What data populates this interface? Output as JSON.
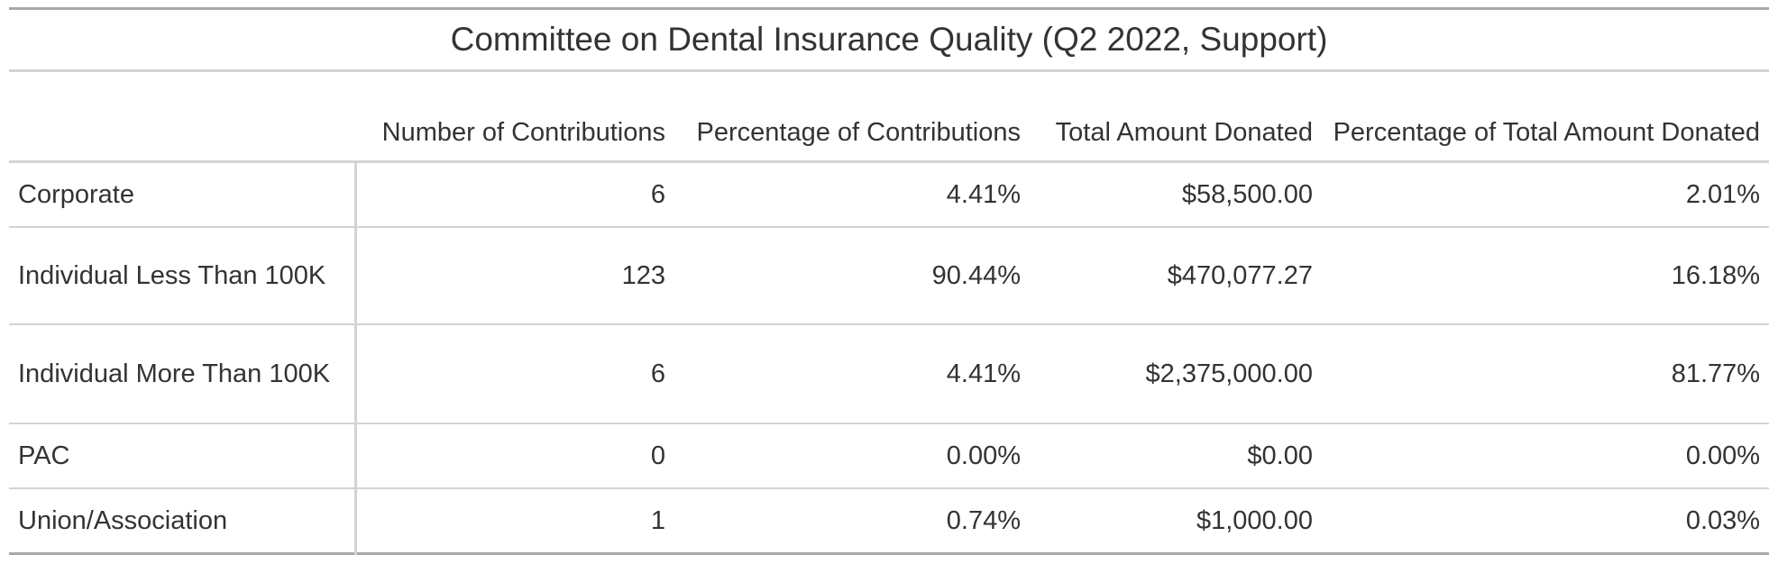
{
  "chart_data": {
    "type": "table",
    "title": "Committee on Dental Insurance Quality (Q2 2022, Support)",
    "columns": [
      "",
      "Number of Contributions",
      "Percentage of Contributions",
      "Total Amount Donated",
      "Percentage of Total Amount Donated"
    ],
    "rows": [
      {
        "label": "Corporate",
        "count": "6",
        "pct_contrib": "4.41%",
        "amount": "$58,500.00",
        "pct_amount": "2.01%"
      },
      {
        "label": "Individual Less Than 100K",
        "count": "123",
        "pct_contrib": "90.44%",
        "amount": "$470,077.27",
        "pct_amount": "16.18%"
      },
      {
        "label": "Individual More Than 100K",
        "count": "6",
        "pct_contrib": "4.41%",
        "amount": "$2,375,000.00",
        "pct_amount": "81.77%"
      },
      {
        "label": "PAC",
        "count": "0",
        "pct_contrib": "0.00%",
        "amount": "$0.00",
        "pct_amount": "0.00%"
      },
      {
        "label": "Union/Association",
        "count": "1",
        "pct_contrib": "0.74%",
        "amount": "$1,000.00",
        "pct_amount": "0.03%"
      }
    ]
  }
}
